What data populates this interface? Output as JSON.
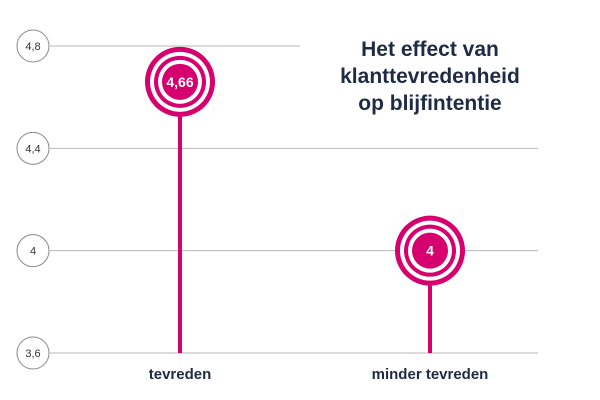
{
  "chart_data": {
    "type": "lollipop",
    "title_lines": [
      "Het effect van",
      "klanttevredenheid",
      "op blijfintentie"
    ],
    "categories": [
      "tevreden",
      "minder tevreden"
    ],
    "values": [
      4.66,
      4
    ],
    "value_labels": [
      "4,66",
      "4"
    ],
    "y_ticks": [
      {
        "value": 4.8,
        "label": "4,8"
      },
      {
        "value": 4.4,
        "label": "4,4"
      },
      {
        "value": 4.0,
        "label": "4"
      },
      {
        "value": 3.6,
        "label": "3,6"
      }
    ],
    "ylim": [
      3.6,
      4.8
    ],
    "grid": true,
    "colors": {
      "accent": "#d6006e",
      "grid": "#b7b7b7",
      "tick_circle": "#8a8a8a",
      "text": "#1f2a44"
    }
  }
}
